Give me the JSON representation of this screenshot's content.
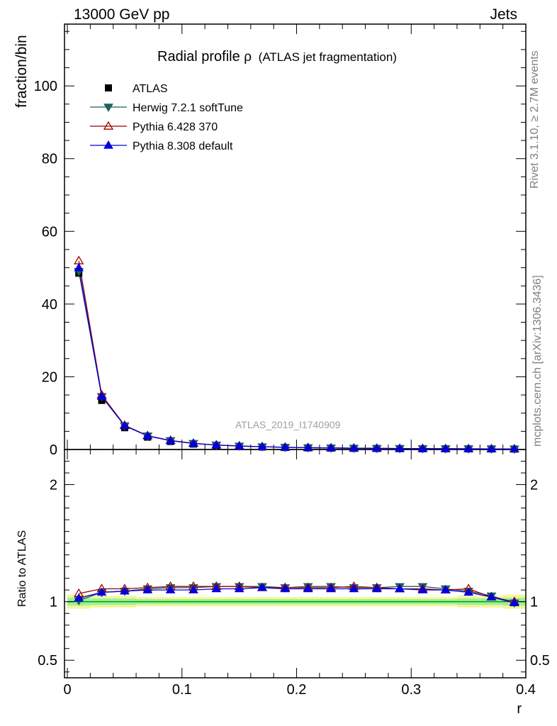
{
  "header": {
    "left": "13000 GeV pp",
    "right": "Jets"
  },
  "side_labels": {
    "rivet": "Rivet 3.1.10, ≥ 2.7M events",
    "mcplots": "mcplots.cern.ch [arXiv:1306.3436]"
  },
  "chart_data": {
    "type": "scatter",
    "title_main": "Radial profile",
    "title_symbol": "ρ",
    "title_suffix": "(ATLAS jet fragmentation)",
    "analysis": "ATLAS_2019_I1740909",
    "xlabel": "r",
    "ylabel": "fraction/bin",
    "ratio_ylabel": "Ratio to ATLAS",
    "xlim": [
      -0.0025,
      0.4
    ],
    "ylim": [
      0,
      117
    ],
    "ratio_ylim": [
      0.35,
      2.3
    ],
    "xticks": [
      0,
      0.1,
      0.2,
      0.3,
      0.4
    ],
    "xtick_labels": [
      "0",
      "0.1",
      "0.2",
      "0.3",
      "0.4"
    ],
    "yticks": [
      0,
      20,
      40,
      60,
      80,
      100
    ],
    "ytick_labels": [
      "0",
      "20",
      "40",
      "60",
      "80",
      "100"
    ],
    "ratio_yticks": [
      0.5,
      1,
      2
    ],
    "ratio_ytick_labels": [
      "0.5",
      "1",
      "2"
    ],
    "x": [
      0.01,
      0.03,
      0.05,
      0.07,
      0.09,
      0.11,
      0.13,
      0.15,
      0.17,
      0.19,
      0.21,
      0.23,
      0.25,
      0.27,
      0.29,
      0.31,
      0.33,
      0.35,
      0.37,
      0.39
    ],
    "data": {
      "name": "ATLAS",
      "values": [
        48.5,
        13.5,
        6.0,
        3.4,
        2.2,
        1.5,
        1.1,
        0.85,
        0.68,
        0.55,
        0.45,
        0.38,
        0.32,
        0.28,
        0.24,
        0.21,
        0.19,
        0.17,
        0.15,
        0.13
      ],
      "band_half_width": [
        0.06,
        0.05,
        0.05,
        0.04,
        0.04,
        0.04,
        0.04,
        0.04,
        0.04,
        0.04,
        0.04,
        0.04,
        0.04,
        0.04,
        0.04,
        0.04,
        0.04,
        0.05,
        0.05,
        0.06
      ]
    },
    "series": [
      {
        "name": "Herwig 7.2.1 softTune",
        "color": "#1f5f5f",
        "marker": "triangle-down-filled",
        "ratio": [
          1.01,
          1.08,
          1.09,
          1.11,
          1.12,
          1.12,
          1.13,
          1.13,
          1.13,
          1.12,
          1.13,
          1.13,
          1.12,
          1.12,
          1.13,
          1.13,
          1.11,
          1.09,
          1.05,
          0.99
        ]
      },
      {
        "name": "Pythia 6.428 370",
        "color": "#a00000",
        "marker": "triangle-up-open",
        "ratio": [
          1.07,
          1.11,
          1.11,
          1.12,
          1.13,
          1.13,
          1.13,
          1.13,
          1.12,
          1.12,
          1.12,
          1.12,
          1.13,
          1.12,
          1.11,
          1.11,
          1.1,
          1.11,
          1.04,
          1.0
        ]
      },
      {
        "name": "Pythia 8.308 default",
        "color": "#0000dd",
        "marker": "triangle-up-filled",
        "ratio": [
          1.03,
          1.08,
          1.09,
          1.1,
          1.1,
          1.1,
          1.11,
          1.11,
          1.12,
          1.11,
          1.11,
          1.11,
          1.11,
          1.11,
          1.11,
          1.1,
          1.1,
          1.08,
          1.04,
          0.99
        ]
      }
    ],
    "colors": {
      "band_inner": "#9cf09c",
      "band_outer": "#f5f59a",
      "reference_line": "#00a000"
    }
  }
}
